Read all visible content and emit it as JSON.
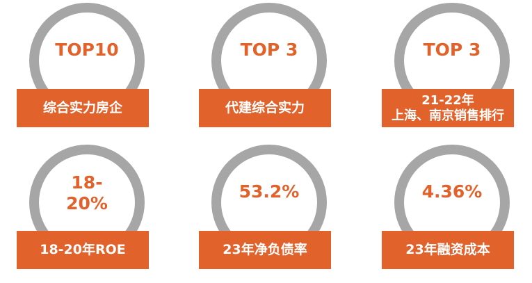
{
  "colors": {
    "accent": "#e2622b",
    "ring": "#a6a6a6",
    "label_text": "#ffffff"
  },
  "tiles": [
    {
      "value": "TOP10",
      "label": "综合实力房企"
    },
    {
      "value": "TOP 3",
      "label": "代建综合实力"
    },
    {
      "value": "TOP 3",
      "label_line1": "21-22年",
      "label_line2": "上海、南京销售排行"
    },
    {
      "value_line1": "18-",
      "value_line2": "20%",
      "label": "18-20年ROE"
    },
    {
      "value": "53.2%",
      "label": "23年净负债率"
    },
    {
      "value": "4.36%",
      "label": "23年融资成本"
    }
  ]
}
